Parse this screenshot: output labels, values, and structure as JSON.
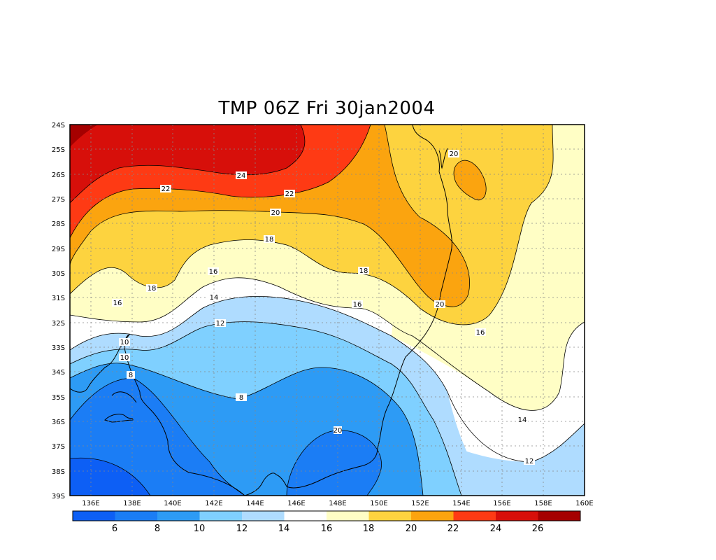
{
  "title": "TMP 06Z Fri 30jan2004",
  "map": {
    "lon_range": [
      135,
      160
    ],
    "lat_range": [
      -39,
      -24
    ],
    "lat_ticks": [
      "24S",
      "25S",
      "26S",
      "27S",
      "28S",
      "29S",
      "30S",
      "31S",
      "32S",
      "33S",
      "34S",
      "35S",
      "36S",
      "37S",
      "38S",
      "39S"
    ],
    "lon_ticks": [
      "136E",
      "138E",
      "140E",
      "142E",
      "144E",
      "146E",
      "148E",
      "150E",
      "152E",
      "154E",
      "156E",
      "158E",
      "160E"
    ],
    "grid": true,
    "contour_labels": [
      "24",
      "22",
      "22",
      "20",
      "20",
      "20",
      "18",
      "18",
      "18",
      "16",
      "16",
      "16",
      "16",
      "14",
      "14",
      "12",
      "12",
      "10",
      "10",
      "8",
      "8",
      "20"
    ]
  },
  "colorbar": {
    "colors": [
      "#0d5ff5",
      "#1b7df5",
      "#2d9bf5",
      "#7fd0ff",
      "#afdcff",
      "#ffffff",
      "#fffec5",
      "#fdd33f",
      "#fba40f",
      "#fe3a14",
      "#d70f0a",
      "#a50000"
    ],
    "labels": [
      "6",
      "8",
      "10",
      "12",
      "14",
      "16",
      "18",
      "20",
      "22",
      "24",
      "26"
    ]
  }
}
